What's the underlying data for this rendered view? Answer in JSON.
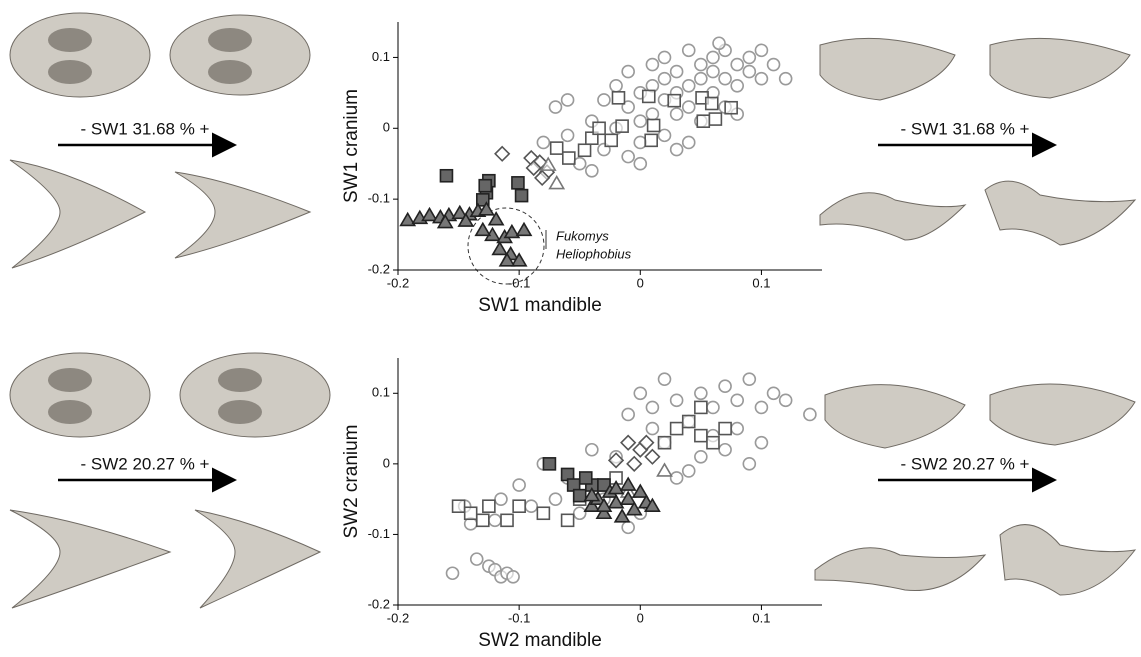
{
  "chart_data": [
    {
      "type": "scatter",
      "xlabel": "SW1 mandible",
      "ylabel": "SW1 cranium",
      "annotations": [
        "- SW1 31.68 % +",
        "Fukomys",
        "Heliophobius"
      ],
      "xlim": [
        -0.2,
        0.15
      ],
      "ylim": [
        -0.2,
        0.15
      ],
      "xticks": [
        -0.2,
        -0.1,
        0,
        0.1
      ],
      "yticks": [
        -0.2,
        -0.1,
        0,
        0.1
      ],
      "series": [
        {
          "marker": "circle",
          "color": "#9a9a9a",
          "filled": false,
          "x": [
            -0.07,
            -0.06,
            -0.05,
            -0.04,
            -0.03,
            -0.03,
            -0.02,
            -0.02,
            -0.01,
            -0.01,
            -0.01,
            0,
            0,
            0,
            0.01,
            0.01,
            0.01,
            0.02,
            0.02,
            0.02,
            0.02,
            0.03,
            0.03,
            0.03,
            0.04,
            0.04,
            0.04,
            0.04,
            0.05,
            0.05,
            0.05,
            0.06,
            0.06,
            0.06,
            0.07,
            0.07,
            0.07,
            0.08,
            0.08,
            0.08,
            0.09,
            0.09,
            0.1,
            0.1,
            0.11,
            0.12,
            -0.08,
            -0.06,
            -0.04,
            0,
            0.065,
            0.03
          ],
          "y": [
            0.03,
            -0.01,
            -0.05,
            0.01,
            0.04,
            -0.03,
            0.06,
            0,
            0.08,
            0.03,
            -0.04,
            0.05,
            0.01,
            -0.02,
            0.09,
            0.06,
            0.02,
            0.1,
            0.07,
            0.04,
            -0.01,
            0.08,
            0.05,
            0.02,
            0.11,
            0.06,
            0.03,
            -0.02,
            0.09,
            0.07,
            0.01,
            0.1,
            0.08,
            0.05,
            0.11,
            0.07,
            0.03,
            0.09,
            0.06,
            0.02,
            0.1,
            0.08,
            0.11,
            0.07,
            0.09,
            0.07,
            -0.02,
            0.04,
            -0.06,
            -0.05,
            0.12,
            -0.03
          ]
        },
        {
          "marker": "square",
          "color": "#555555",
          "filled": false,
          "x": [
            -0.069,
            -0.059,
            -0.046,
            -0.04,
            -0.034,
            -0.024,
            -0.015,
            0.011,
            0.009,
            -0.018,
            0.028,
            0.051,
            0.059,
            0.052,
            0.075,
            0.007,
            0.062
          ],
          "y": [
            -0.028,
            -0.042,
            -0.031,
            -0.014,
            0,
            -0.017,
            0.003,
            0.004,
            -0.017,
            0.043,
            0.039,
            0.043,
            0.035,
            0.01,
            0.029,
            0.045,
            0.013
          ]
        },
        {
          "marker": "square",
          "color": "#666666",
          "filled": true,
          "x": [
            -0.16,
            -0.125,
            -0.127,
            -0.13,
            -0.101,
            -0.098,
            -0.128
          ],
          "y": [
            -0.067,
            -0.074,
            -0.091,
            -0.101,
            -0.077,
            -0.095,
            -0.081
          ]
        },
        {
          "marker": "diamond",
          "color": "#555555",
          "filled": false,
          "x": [
            -0.114,
            -0.09,
            -0.083,
            -0.088,
            -0.077,
            -0.081
          ],
          "y": [
            -0.036,
            -0.042,
            -0.048,
            -0.056,
            -0.062,
            -0.07
          ]
        },
        {
          "marker": "triangle",
          "color": "#777777",
          "filled": false,
          "x": [
            -0.069,
            -0.076
          ],
          "y": [
            -0.078,
            -0.052
          ]
        },
        {
          "marker": "triangle",
          "color": "#777777",
          "filled": true,
          "x": [
            -0.192,
            -0.182,
            -0.174,
            -0.165,
            -0.158,
            -0.149,
            -0.141,
            -0.134,
            -0.127,
            -0.161,
            -0.144,
            -0.119,
            -0.122,
            -0.112,
            -0.106,
            -0.096,
            -0.116,
            -0.107,
            -0.1,
            -0.11,
            -0.13
          ],
          "y": [
            -0.13,
            -0.127,
            -0.123,
            -0.126,
            -0.123,
            -0.12,
            -0.122,
            -0.117,
            -0.115,
            -0.133,
            -0.131,
            -0.129,
            -0.151,
            -0.154,
            -0.147,
            -0.144,
            -0.171,
            -0.178,
            -0.187,
            -0.187,
            -0.144
          ]
        }
      ]
    },
    {
      "type": "scatter",
      "xlabel": "SW2 mandible",
      "ylabel": "SW2 cranium",
      "annotations": [
        "- SW2 20.27 % +"
      ],
      "xlim": [
        -0.2,
        0.15
      ],
      "ylim": [
        -0.2,
        0.15
      ],
      "xticks": [
        -0.2,
        -0.1,
        0,
        0.1
      ],
      "yticks": [
        -0.2,
        -0.1,
        0,
        0.1
      ],
      "series": [
        {
          "marker": "circle",
          "color": "#9a9a9a",
          "filled": false,
          "x": [
            -0.155,
            -0.145,
            -0.14,
            -0.135,
            -0.125,
            -0.12,
            -0.115,
            -0.11,
            -0.105,
            -0.115,
            -0.12,
            -0.1,
            -0.09,
            -0.07,
            -0.06,
            -0.08,
            -0.05,
            -0.04,
            -0.03,
            -0.02,
            -0.01,
            0,
            0.01,
            0.02,
            0.02,
            0.03,
            0.03,
            0.04,
            0.05,
            0.05,
            0.06,
            0.06,
            0.07,
            0.07,
            0.08,
            0.08,
            0.09,
            0.09,
            0.1,
            0.11,
            0.12,
            0.14,
            0,
            -0.01,
            0.01,
            0.04,
            0.1
          ],
          "y": [
            -0.155,
            -0.06,
            -0.085,
            -0.135,
            -0.145,
            -0.15,
            -0.16,
            -0.155,
            -0.16,
            -0.05,
            -0.08,
            -0.03,
            -0.06,
            -0.05,
            -0.02,
            0,
            -0.07,
            0.02,
            -0.05,
            0.01,
            0.07,
            0.1,
            0.08,
            0.12,
            0.03,
            0.09,
            -0.02,
            0.06,
            0.1,
            0.01,
            0.08,
            0.04,
            0.11,
            0.02,
            0.09,
            0.05,
            0.12,
            0,
            0.08,
            0.1,
            0.09,
            0.07,
            -0.07,
            -0.09,
            0.05,
            -0.01,
            0.03
          ]
        },
        {
          "marker": "square",
          "color": "#555555",
          "filled": false,
          "x": [
            -0.15,
            -0.14,
            -0.13,
            -0.125,
            -0.11,
            -0.1,
            -0.08,
            -0.06,
            -0.05,
            -0.02,
            0.02,
            0.03,
            0.04,
            0.05,
            0.05,
            0.06,
            0.07,
            -0.03
          ],
          "y": [
            -0.06,
            -0.07,
            -0.08,
            -0.06,
            -0.08,
            -0.06,
            -0.07,
            -0.08,
            -0.05,
            -0.02,
            0.03,
            0.05,
            0.06,
            0.08,
            0.04,
            0.03,
            0.05,
            -0.03
          ]
        },
        {
          "marker": "square",
          "color": "#666666",
          "filled": true,
          "x": [
            -0.075,
            -0.06,
            -0.055,
            -0.05,
            -0.04,
            -0.045,
            -0.03
          ],
          "y": [
            0,
            -0.015,
            -0.03,
            -0.045,
            -0.03,
            -0.02,
            -0.03
          ]
        },
        {
          "marker": "diamond",
          "color": "#555555",
          "filled": false,
          "x": [
            -0.01,
            0,
            0.01,
            -0.005,
            -0.02,
            0.005
          ],
          "y": [
            0.03,
            0.02,
            0.01,
            0,
            0.005,
            0.03
          ]
        },
        {
          "marker": "triangle",
          "color": "#777777",
          "filled": false,
          "x": [
            0.02,
            -0.01
          ],
          "y": [
            -0.01,
            -0.04
          ]
        },
        {
          "marker": "triangle",
          "color": "#777777",
          "filled": true,
          "x": [
            -0.04,
            -0.035,
            -0.03,
            -0.025,
            -0.02,
            -0.015,
            -0.01,
            -0.005,
            0,
            0.005,
            -0.04,
            -0.02,
            0.01,
            -0.03,
            -0.01
          ],
          "y": [
            -0.06,
            -0.05,
            -0.07,
            -0.04,
            -0.055,
            -0.075,
            -0.05,
            -0.065,
            -0.04,
            -0.055,
            -0.045,
            -0.035,
            -0.06,
            -0.06,
            -0.03
          ]
        }
      ]
    }
  ]
}
